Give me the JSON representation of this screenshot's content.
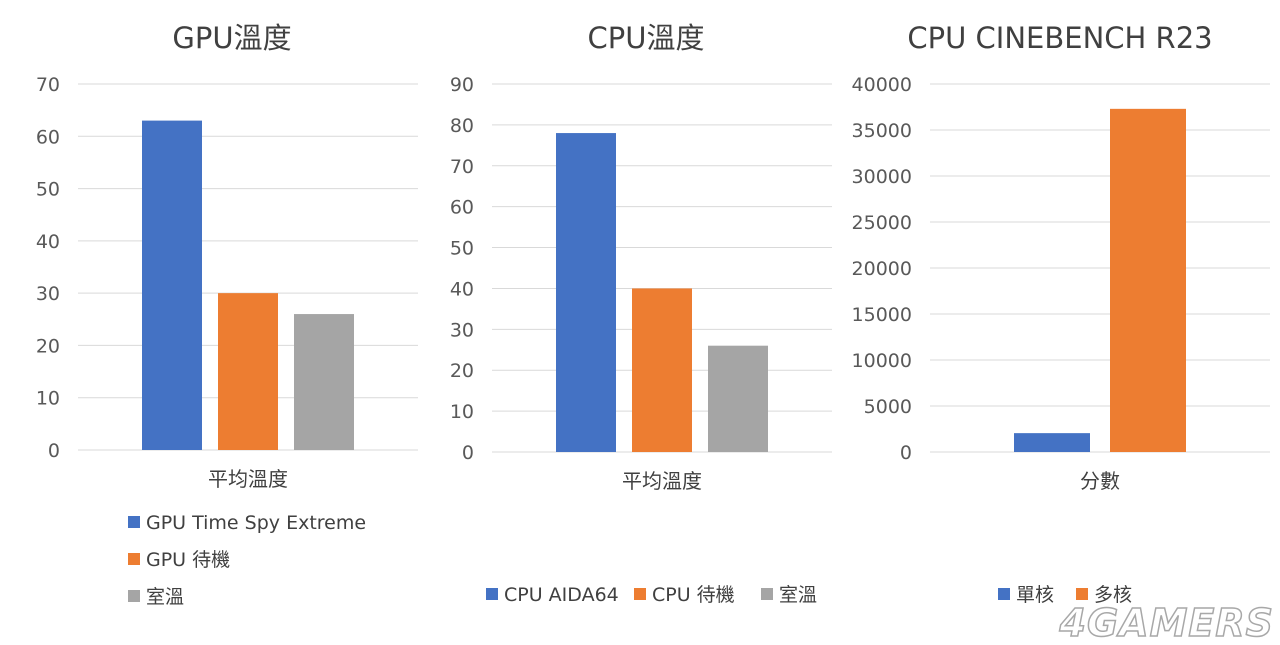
{
  "watermark": "4GAMERS",
  "chart_data": [
    {
      "type": "bar",
      "title": "GPU溫度",
      "categories": [
        "平均溫度"
      ],
      "series": [
        {
          "name": "GPU Time Spy Extreme",
          "values": [
            63
          ],
          "color": "#4472C4"
        },
        {
          "name": "GPU 待機",
          "values": [
            30
          ],
          "color": "#ED7D31"
        },
        {
          "name": "室溫",
          "values": [
            26
          ],
          "color": "#A5A5A5"
        }
      ],
      "ylim": [
        0,
        70
      ],
      "yticks": [
        0,
        10,
        20,
        30,
        40,
        50,
        60,
        70
      ],
      "grid": true,
      "legend": "bottom-vertical"
    },
    {
      "type": "bar",
      "title": "CPU溫度",
      "categories": [
        "平均溫度"
      ],
      "series": [
        {
          "name": "CPU AIDA64",
          "values": [
            78
          ],
          "color": "#4472C4"
        },
        {
          "name": "CPU 待機",
          "values": [
            40
          ],
          "color": "#ED7D31"
        },
        {
          "name": "室溫",
          "values": [
            26
          ],
          "color": "#A5A5A5"
        }
      ],
      "ylim": [
        0,
        90
      ],
      "yticks": [
        0,
        10,
        20,
        30,
        40,
        50,
        60,
        70,
        80,
        90
      ],
      "grid": true,
      "legend": "bottom"
    },
    {
      "type": "bar",
      "title": "CPU CINEBENCH R23",
      "categories": [
        "分數"
      ],
      "series": [
        {
          "name": "單核",
          "values": [
            2050
          ],
          "color": "#4472C4"
        },
        {
          "name": "多核",
          "values": [
            37300
          ],
          "color": "#ED7D31"
        }
      ],
      "ylim": [
        0,
        40000
      ],
      "yticks": [
        0,
        5000,
        10000,
        15000,
        20000,
        25000,
        30000,
        35000,
        40000
      ],
      "grid": true,
      "legend": "bottom"
    }
  ]
}
